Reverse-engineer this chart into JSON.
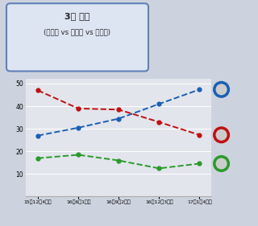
{
  "title_line1": "3자 대결",
  "title_line2": "(문재인 vs 반기문 vs 안철수)",
  "x_labels": [
    "15년12월4주차",
    "16년6월1주차",
    "16년9월2주차",
    "16년12월3주차",
    "17년1월4주차"
  ],
  "moon_values": [
    27.0,
    30.5,
    34.5,
    41.0,
    47.4
  ],
  "ban_values": [
    47.0,
    39.0,
    38.5,
    33.0,
    27.3
  ],
  "ahn_values": [
    17.0,
    18.5,
    16.0,
    12.5,
    14.6
  ],
  "moon_color": "#1a5fb4",
  "ban_color": "#c01010",
  "ahn_color": "#2a9a2a",
  "ylim": [
    0,
    52
  ],
  "yticks": [
    10,
    20,
    30,
    40,
    50
  ],
  "bg_color": "#cdd3de",
  "plot_bg_color": "#e2e5ec",
  "title_box_facecolor": "#dde4f2",
  "title_border_color": "#6080b8",
  "grid_color": "#ffffff"
}
